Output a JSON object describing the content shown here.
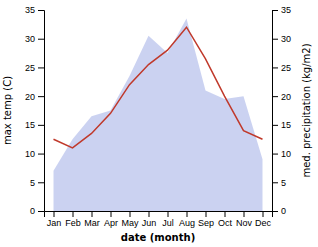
{
  "chart_data": {
    "type": "line",
    "categories": [
      "Jan",
      "Feb",
      "Mar",
      "Apr",
      "May",
      "Jun",
      "Jul",
      "Aug",
      "Sep",
      "Oct",
      "Nov",
      "Dec"
    ],
    "xlabel": "date (month)",
    "ylabel": "max temp (C)",
    "y2label": "med. precipitation (kg/m2)",
    "ylim": [
      0,
      35
    ],
    "yticks": [
      0,
      5,
      10,
      15,
      20,
      25,
      30,
      35
    ],
    "y2lim": [
      0,
      35
    ],
    "y2ticks": [
      0,
      5,
      10,
      15,
      20,
      25,
      30,
      35
    ],
    "grid": false,
    "series": [
      {
        "type": "area",
        "axis": "y2",
        "color": "#c5cdf0",
        "values": [
          7.0,
          12.5,
          16.5,
          17.5,
          23.5,
          30.5,
          27.5,
          33.5,
          21.0,
          19.5,
          20.0,
          9.0
        ]
      },
      {
        "type": "line",
        "color": "#c0392b",
        "values": [
          12.5,
          11.0,
          13.5,
          17.0,
          22.0,
          25.5,
          28.0,
          32.0,
          26.5,
          20.0,
          14.0,
          12.5
        ]
      }
    ]
  }
}
